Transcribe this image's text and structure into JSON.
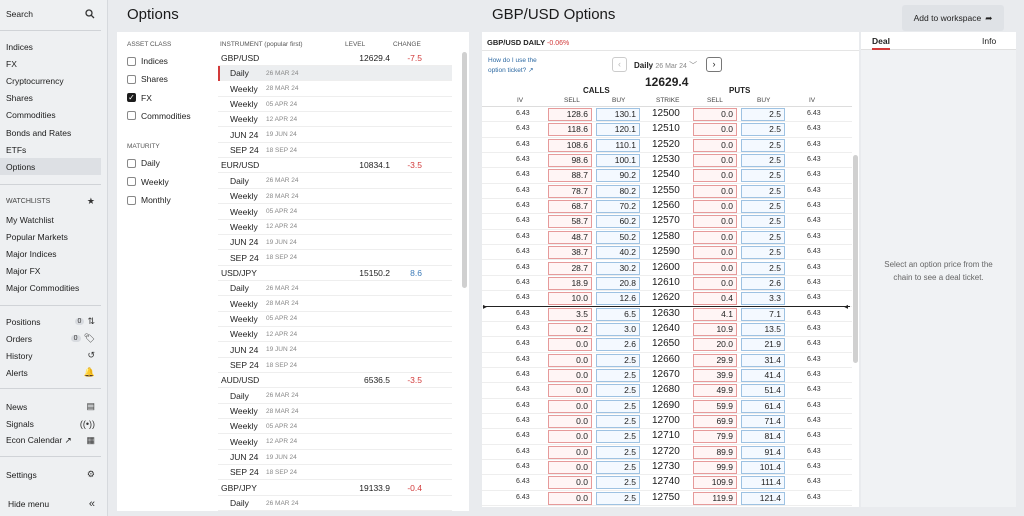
{
  "sidebar": {
    "search": "Search",
    "items": [
      "Indices",
      "FX",
      "Cryptocurrency",
      "Shares",
      "Commodities",
      "Bonds and Rates",
      "ETFs",
      "Options"
    ],
    "watchlists_head": "WATCHLISTS",
    "watchlists": [
      "My Watchlist",
      "Popular Markets",
      "Major Indices",
      "Major FX",
      "Major Commodities"
    ],
    "positions": "Positions",
    "positions_count": "0",
    "orders": "Orders",
    "orders_count": "0",
    "history": "History",
    "alerts": "Alerts",
    "news": "News",
    "signals": "Signals",
    "econ": "Econ Calendar",
    "settings": "Settings",
    "hide": "Hide menu"
  },
  "options": {
    "title": "Options",
    "asset_head": "ASSET CLASS",
    "assets": [
      "Indices",
      "Shares",
      "FX",
      "Commodities"
    ],
    "asset_checked": [
      false,
      false,
      true,
      false
    ],
    "maturity_head": "MATURITY",
    "maturities": [
      "Daily",
      "Weekly",
      "Monthly"
    ],
    "col_instr": "INSTRUMENT (popular first)",
    "col_level": "LEVEL",
    "col_change": "CHANGE",
    "groups": [
      {
        "name": "GBP/USD",
        "level": "12629.4",
        "change": "-7.5",
        "dir": "neg",
        "subs": [
          [
            "Daily",
            "26 MAR 24"
          ],
          [
            "Weekly",
            "28 MAR 24"
          ],
          [
            "Weekly",
            "05 APR 24"
          ],
          [
            "Weekly",
            "12 APR 24"
          ],
          [
            "JUN 24",
            "19 JUN 24"
          ],
          [
            "SEP 24",
            "18 SEP 24"
          ]
        ]
      },
      {
        "name": "EUR/USD",
        "level": "10834.1",
        "change": "-3.5",
        "dir": "neg",
        "subs": [
          [
            "Daily",
            "26 MAR 24"
          ],
          [
            "Weekly",
            "28 MAR 24"
          ],
          [
            "Weekly",
            "05 APR 24"
          ],
          [
            "Weekly",
            "12 APR 24"
          ],
          [
            "JUN 24",
            "19 JUN 24"
          ],
          [
            "SEP 24",
            "18 SEP 24"
          ]
        ]
      },
      {
        "name": "USD/JPY",
        "level": "15150.2",
        "change": "8.6",
        "dir": "pos",
        "subs": [
          [
            "Daily",
            "26 MAR 24"
          ],
          [
            "Weekly",
            "28 MAR 24"
          ],
          [
            "Weekly",
            "05 APR 24"
          ],
          [
            "Weekly",
            "12 APR 24"
          ],
          [
            "JUN 24",
            "19 JUN 24"
          ],
          [
            "SEP 24",
            "18 SEP 24"
          ]
        ]
      },
      {
        "name": "AUD/USD",
        "level": "6536.5",
        "change": "-3.5",
        "dir": "neg",
        "subs": [
          [
            "Daily",
            "26 MAR 24"
          ],
          [
            "Weekly",
            "28 MAR 24"
          ],
          [
            "Weekly",
            "05 APR 24"
          ],
          [
            "Weekly",
            "12 APR 24"
          ],
          [
            "JUN 24",
            "19 JUN 24"
          ],
          [
            "SEP 24",
            "18 SEP 24"
          ]
        ]
      },
      {
        "name": "GBP/JPY",
        "level": "19133.9",
        "change": "-0.4",
        "dir": "neg",
        "subs": [
          [
            "Daily",
            "26 MAR 24"
          ]
        ]
      }
    ]
  },
  "chain": {
    "title": "GBP/USD Options",
    "subtitle": "GBP/USD DAILY",
    "subtitle_change": "-0.06%",
    "help1": "How do I use the",
    "help2": "option ticket?",
    "period": "Daily",
    "period_date": "26 Mar 24",
    "level": "12629.4",
    "calls": "CALLS",
    "puts": "PUTS",
    "h_iv": "IV",
    "h_sell": "SELL",
    "h_buy": "BUY",
    "h_strike": "STRIKE",
    "rows": [
      [
        "6.43",
        "128.6",
        "130.1",
        "12500",
        "0.0",
        "2.5",
        "6.43"
      ],
      [
        "6.43",
        "118.6",
        "120.1",
        "12510",
        "0.0",
        "2.5",
        "6.43"
      ],
      [
        "6.43",
        "108.6",
        "110.1",
        "12520",
        "0.0",
        "2.5",
        "6.43"
      ],
      [
        "6.43",
        "98.6",
        "100.1",
        "12530",
        "0.0",
        "2.5",
        "6.43"
      ],
      [
        "6.43",
        "88.7",
        "90.2",
        "12540",
        "0.0",
        "2.5",
        "6.43"
      ],
      [
        "6.43",
        "78.7",
        "80.2",
        "12550",
        "0.0",
        "2.5",
        "6.43"
      ],
      [
        "6.43",
        "68.7",
        "70.2",
        "12560",
        "0.0",
        "2.5",
        "6.43"
      ],
      [
        "6.43",
        "58.7",
        "60.2",
        "12570",
        "0.0",
        "2.5",
        "6.43"
      ],
      [
        "6.43",
        "48.7",
        "50.2",
        "12580",
        "0.0",
        "2.5",
        "6.43"
      ],
      [
        "6.43",
        "38.7",
        "40.2",
        "12590",
        "0.0",
        "2.5",
        "6.43"
      ],
      [
        "6.43",
        "28.7",
        "30.2",
        "12600",
        "0.0",
        "2.5",
        "6.43"
      ],
      [
        "6.43",
        "18.9",
        "20.8",
        "12610",
        "0.0",
        "2.6",
        "6.43"
      ],
      [
        "6.43",
        "10.0",
        "12.6",
        "12620",
        "0.4",
        "3.3",
        "6.43"
      ],
      [
        "6.43",
        "3.5",
        "6.5",
        "12630",
        "4.1",
        "7.1",
        "6.43"
      ],
      [
        "6.43",
        "0.2",
        "3.0",
        "12640",
        "10.9",
        "13.5",
        "6.43"
      ],
      [
        "6.43",
        "0.0",
        "2.6",
        "12650",
        "20.0",
        "21.9",
        "6.43"
      ],
      [
        "6.43",
        "0.0",
        "2.5",
        "12660",
        "29.9",
        "31.4",
        "6.43"
      ],
      [
        "6.43",
        "0.0",
        "2.5",
        "12670",
        "39.9",
        "41.4",
        "6.43"
      ],
      [
        "6.43",
        "0.0",
        "2.5",
        "12680",
        "49.9",
        "51.4",
        "6.43"
      ],
      [
        "6.43",
        "0.0",
        "2.5",
        "12690",
        "59.9",
        "61.4",
        "6.43"
      ],
      [
        "6.43",
        "0.0",
        "2.5",
        "12700",
        "69.9",
        "71.4",
        "6.43"
      ],
      [
        "6.43",
        "0.0",
        "2.5",
        "12710",
        "79.9",
        "81.4",
        "6.43"
      ],
      [
        "6.43",
        "0.0",
        "2.5",
        "12720",
        "89.9",
        "91.4",
        "6.43"
      ],
      [
        "6.43",
        "0.0",
        "2.5",
        "12730",
        "99.9",
        "101.4",
        "6.43"
      ],
      [
        "6.43",
        "0.0",
        "2.5",
        "12740",
        "109.9",
        "111.4",
        "6.43"
      ],
      [
        "6.43",
        "0.0",
        "2.5",
        "12750",
        "119.9",
        "121.4",
        "6.43"
      ]
    ]
  },
  "deal": {
    "add": "Add to workspace",
    "tab_deal": "Deal",
    "tab_info": "Info",
    "msg1": "Select an option price from the",
    "msg2": "chain to see a deal ticket."
  }
}
